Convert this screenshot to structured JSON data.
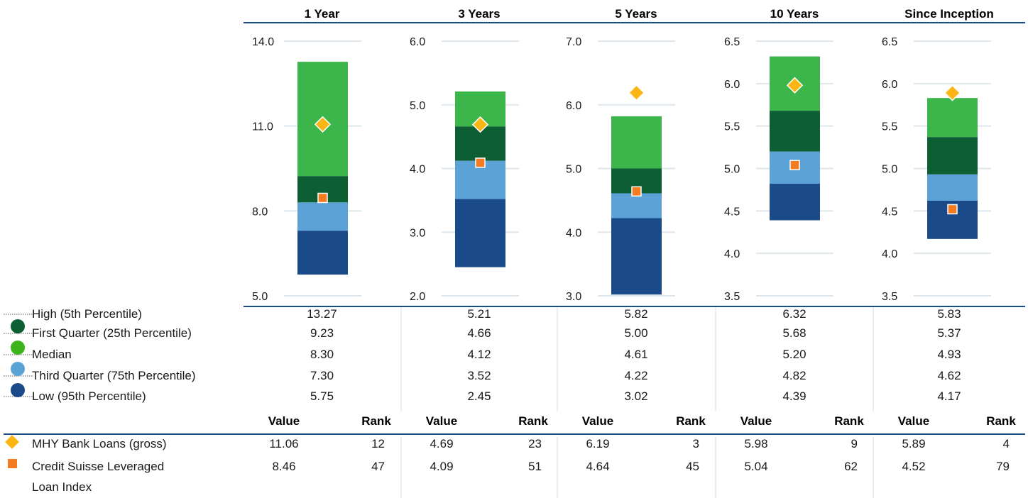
{
  "chart_data": {
    "type": "floating-bar",
    "periods": [
      {
        "label": "1 Year",
        "ylim": [
          5.0,
          14.0
        ],
        "ticks": [
          "5.0",
          "8.0",
          "11.0",
          "14.0"
        ]
      },
      {
        "label": "3 Years",
        "ylim": [
          2.0,
          6.0
        ],
        "ticks": [
          "2.0",
          "3.0",
          "4.0",
          "5.0",
          "6.0"
        ]
      },
      {
        "label": "5 Years",
        "ylim": [
          3.0,
          7.0
        ],
        "ticks": [
          "3.0",
          "4.0",
          "5.0",
          "6.0",
          "7.0"
        ]
      },
      {
        "label": "10 Years",
        "ylim": [
          3.5,
          6.5
        ],
        "ticks": [
          "3.5",
          "4.0",
          "4.5",
          "5.0",
          "5.5",
          "6.0",
          "6.5"
        ]
      },
      {
        "label": "Since Inception",
        "ylim": [
          3.5,
          6.5
        ],
        "ticks": [
          "3.5",
          "4.0",
          "4.5",
          "5.0",
          "5.5",
          "6.0",
          "6.5"
        ]
      }
    ],
    "percentile_rows": [
      {
        "name": "High (5th Percentile)",
        "values": [
          "13.27",
          "5.21",
          "5.82",
          "6.32",
          "5.83"
        ]
      },
      {
        "name": "First Quarter (25th Percentile)",
        "values": [
          "9.23",
          "4.66",
          "5.00",
          "5.68",
          "5.37"
        ]
      },
      {
        "name": "Median",
        "values": [
          "8.30",
          "4.12",
          "4.61",
          "5.20",
          "4.93"
        ]
      },
      {
        "name": "Third Quarter (75th Percentile)",
        "values": [
          "7.30",
          "3.52",
          "4.22",
          "4.82",
          "4.62"
        ]
      },
      {
        "name": "Low (95th Percentile)",
        "values": [
          "5.75",
          "2.45",
          "3.02",
          "4.39",
          "4.17"
        ]
      }
    ],
    "band_colors": [
      "#3cb54a",
      "#0e5e34",
      "#5ba3d6",
      "#1b4a8a"
    ],
    "legend_dot_colors": [
      "#0e5e34",
      "#3cb51c",
      "#5ba3d6",
      "#1b4a8a"
    ],
    "value_header": "Value",
    "rank_header": "Rank",
    "series": [
      {
        "name": "MHY Bank Loans (gross)",
        "marker": "diamond",
        "color": "#fbb616",
        "values": [
          "11.06",
          "4.69",
          "6.19",
          "5.98",
          "5.89"
        ],
        "ranks": [
          "12",
          "23",
          "3",
          "9",
          "4"
        ]
      },
      {
        "name": "Credit Suisse Leveraged",
        "name_line2": "Loan Index",
        "marker": "square",
        "color": "#f47b20",
        "values": [
          "8.46",
          "4.09",
          "4.64",
          "5.04",
          "4.52"
        ],
        "ranks": [
          "47",
          "51",
          "45",
          "62",
          "79"
        ]
      }
    ]
  }
}
